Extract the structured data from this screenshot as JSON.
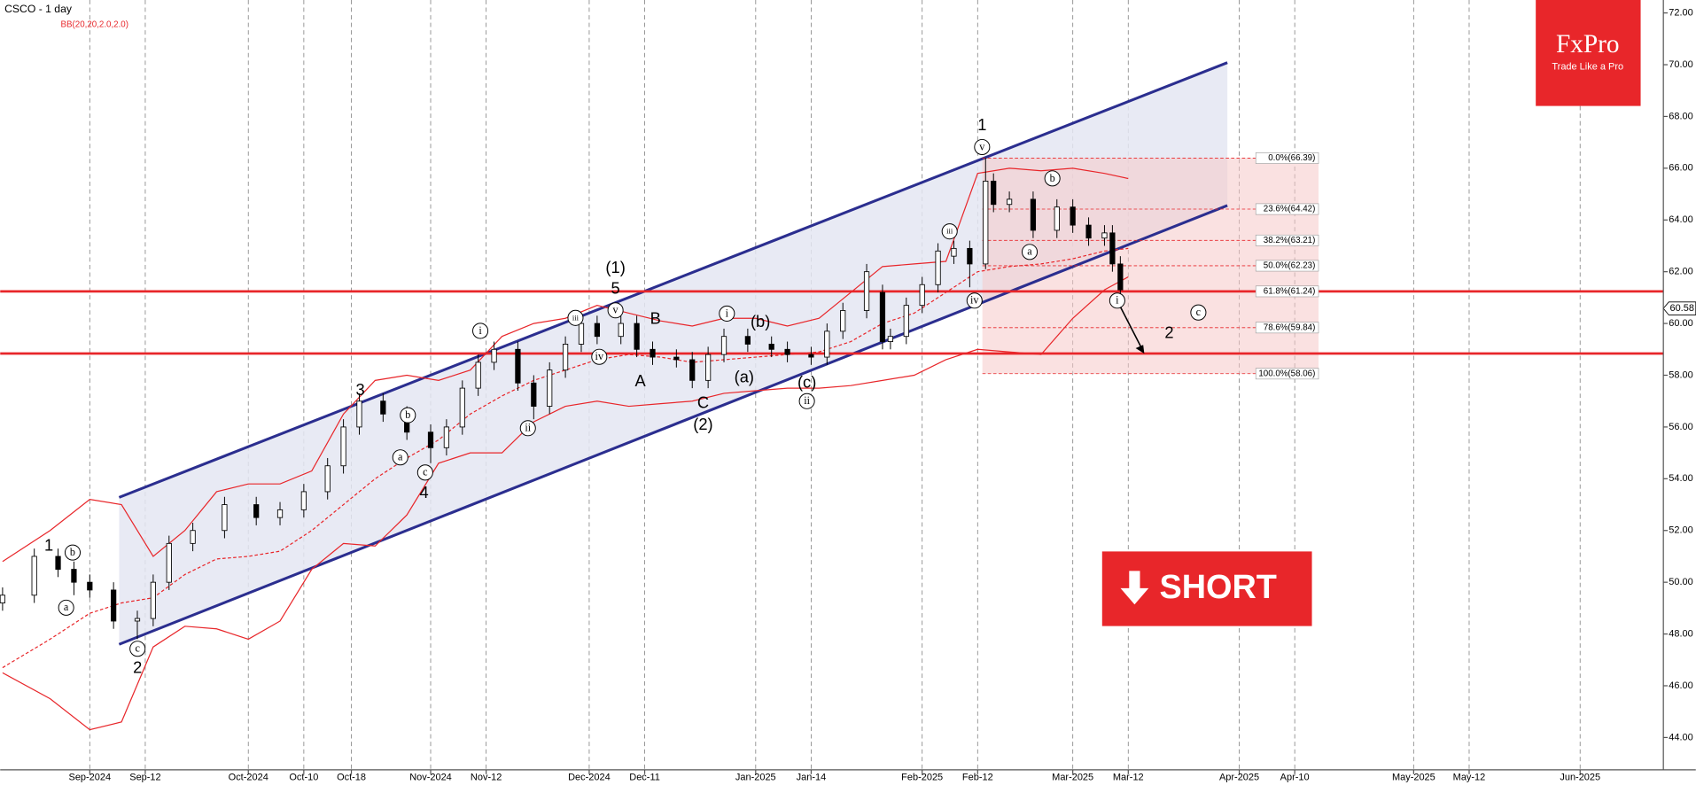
{
  "chart_data": {
    "type": "candlestick",
    "title": "CSCO - 1 day",
    "indicator_label": "BB(20,20,2.0,2.0)",
    "xlim": [
      -11.3,
      198.5
    ],
    "xticks": [
      {
        "value": 0,
        "label": "Sep-2024"
      },
      {
        "value": 7,
        "label": "Sep-12"
      },
      {
        "value": 20,
        "label": "Oct-2024"
      },
      {
        "value": 27,
        "label": "Oct-10"
      },
      {
        "value": 33,
        "label": "Oct-18"
      },
      {
        "value": 43,
        "label": "Nov-2024"
      },
      {
        "value": 50,
        "label": "Nov-12"
      },
      {
        "value": 63,
        "label": "Dec-2024"
      },
      {
        "value": 70,
        "label": "Dec-11"
      },
      {
        "value": 84,
        "label": "Jan-2025"
      },
      {
        "value": 91,
        "label": "Jan-14"
      },
      {
        "value": 105,
        "label": "Feb-2025"
      },
      {
        "value": 112,
        "label": "Feb-12"
      },
      {
        "value": 124,
        "label": "Mar-2025"
      },
      {
        "value": 131,
        "label": "Mar-12"
      },
      {
        "value": 145,
        "label": "Apr-2025"
      },
      {
        "value": 152,
        "label": "Apr-10"
      },
      {
        "value": 167,
        "label": "May-2025"
      },
      {
        "value": 174,
        "label": "May-12"
      },
      {
        "value": 188,
        "label": "Jun-2025"
      }
    ],
    "ylim": [
      42.75,
      72.5
    ],
    "yticks": [
      {
        "value": 44,
        "label": "44.00"
      },
      {
        "value": 46,
        "label": "46.00"
      },
      {
        "value": 48,
        "label": "48.00"
      },
      {
        "value": 50,
        "label": "50.00"
      },
      {
        "value": 52,
        "label": "52.00"
      },
      {
        "value": 54,
        "label": "54.00"
      },
      {
        "value": 56,
        "label": "56.00"
      },
      {
        "value": 58,
        "label": "58.00"
      },
      {
        "value": 60,
        "label": "60.00"
      },
      {
        "value": 62,
        "label": "62.00"
      },
      {
        "value": 64,
        "label": "64.00"
      },
      {
        "value": 66,
        "label": "66.00"
      },
      {
        "value": 68,
        "label": "68.00"
      },
      {
        "value": 70,
        "label": "70.00"
      },
      {
        "value": 72,
        "label": "72.00"
      }
    ],
    "last_price": 60.58,
    "candles": {
      "x": [
        -11,
        -7,
        -4,
        -2,
        0,
        3,
        6,
        8,
        10,
        13,
        17,
        21,
        24,
        27,
        30,
        32,
        34,
        37,
        40,
        43,
        45,
        47,
        49,
        51,
        54,
        56,
        58,
        60,
        62,
        64,
        67,
        69,
        71,
        74,
        76,
        78,
        80,
        83,
        86,
        88,
        91,
        93,
        95,
        98,
        100,
        101,
        103,
        105,
        107,
        109,
        111,
        113,
        114,
        116,
        119,
        122,
        124,
        126,
        128,
        129,
        130
      ],
      "open": [
        49.2,
        49.5,
        51.0,
        50.5,
        50.0,
        49.7,
        48.5,
        48.6,
        50.0,
        51.5,
        52.0,
        53.0,
        52.5,
        52.8,
        53.5,
        54.5,
        56.0,
        57.0,
        56.5,
        55.8,
        55.2,
        56.0,
        57.5,
        58.5,
        59.0,
        57.7,
        56.8,
        58.2,
        59.2,
        60.0,
        59.5,
        60.0,
        59.0,
        58.7,
        58.6,
        57.8,
        58.8,
        59.5,
        59.2,
        59.0,
        58.8,
        58.7,
        59.7,
        60.5,
        61.2,
        59.3,
        59.5,
        60.7,
        61.5,
        62.6,
        62.9,
        62.3,
        65.5,
        64.6,
        64.8,
        63.6,
        64.5,
        63.8,
        63.3,
        63.5,
        62.3
      ],
      "high": [
        49.8,
        51.3,
        51.3,
        50.8,
        50.3,
        50.0,
        48.9,
        50.3,
        51.8,
        52.3,
        53.3,
        53.3,
        53.1,
        53.8,
        54.8,
        56.3,
        57.3,
        57.3,
        56.8,
        56.1,
        56.3,
        57.8,
        58.8,
        59.3,
        59.3,
        58.0,
        58.5,
        59.5,
        60.3,
        60.3,
        60.3,
        60.3,
        59.3,
        59.0,
        58.9,
        59.1,
        59.8,
        59.8,
        59.5,
        59.3,
        59.1,
        60.0,
        60.8,
        62.3,
        61.5,
        59.8,
        61.0,
        61.8,
        63.1,
        63.2,
        63.2,
        66.4,
        65.8,
        65.1,
        65.1,
        64.8,
        64.8,
        64.1,
        63.8,
        63.8,
        62.6
      ],
      "low": [
        48.9,
        49.2,
        50.2,
        49.5,
        49.4,
        48.2,
        47.8,
        48.3,
        49.7,
        51.2,
        51.7,
        52.2,
        52.2,
        52.5,
        53.2,
        54.2,
        55.7,
        56.2,
        55.5,
        54.6,
        54.9,
        55.7,
        57.2,
        58.2,
        57.4,
        56.3,
        56.5,
        57.9,
        58.9,
        59.2,
        59.2,
        58.7,
        58.4,
        58.3,
        57.5,
        57.5,
        58.5,
        58.9,
        58.7,
        58.5,
        58.4,
        58.4,
        59.4,
        60.2,
        59.0,
        59.0,
        59.2,
        60.4,
        61.2,
        62.3,
        61.4,
        62.1,
        64.3,
        64.3,
        63.3,
        63.3,
        63.5,
        63.0,
        63.0,
        62.0,
        61.0
      ],
      "close": [
        49.5,
        51.0,
        50.5,
        50.0,
        49.7,
        48.5,
        48.6,
        50.0,
        51.5,
        52.0,
        53.0,
        52.5,
        52.8,
        53.5,
        54.5,
        56.0,
        57.0,
        56.5,
        55.8,
        55.2,
        56.0,
        57.5,
        58.5,
        59.0,
        57.7,
        56.8,
        58.2,
        59.2,
        60.0,
        59.5,
        60.0,
        59.0,
        58.7,
        58.6,
        57.8,
        58.8,
        59.5,
        59.2,
        59.0,
        58.8,
        58.7,
        59.7,
        60.5,
        62.0,
        59.3,
        59.5,
        60.7,
        61.5,
        62.8,
        62.9,
        62.3,
        65.5,
        64.6,
        64.8,
        63.6,
        64.5,
        63.8,
        63.3,
        63.5,
        62.3,
        61.3
      ]
    },
    "bands": {
      "color": "#e8262a",
      "x": [
        -11,
        -5,
        0,
        4,
        8,
        12,
        16,
        20,
        24,
        28,
        32,
        36,
        40,
        44,
        48,
        52,
        56,
        60,
        64,
        68,
        72,
        76,
        80,
        84,
        88,
        92,
        96,
        100,
        104,
        108,
        112,
        116,
        120,
        124,
        128,
        131
      ],
      "upper": [
        50.8,
        52.0,
        53.2,
        53.0,
        51.0,
        52.0,
        53.5,
        53.8,
        53.8,
        54.3,
        56.5,
        57.8,
        58.0,
        57.8,
        58.2,
        59.5,
        60.0,
        60.2,
        60.7,
        60.4,
        60.1,
        59.9,
        60.2,
        60.2,
        59.9,
        60.2,
        61.2,
        62.2,
        62.3,
        62.4,
        65.8,
        66.0,
        65.9,
        66.0,
        65.8,
        65.6
      ],
      "middle": [
        46.7,
        47.8,
        48.8,
        49.2,
        49.4,
        50.3,
        50.9,
        51.0,
        51.2,
        52.0,
        53.0,
        54.0,
        54.8,
        55.5,
        56.5,
        57.2,
        57.8,
        58.2,
        58.6,
        58.8,
        58.7,
        58.5,
        58.6,
        58.7,
        58.8,
        58.9,
        59.3,
        60.0,
        60.4,
        61.2,
        62.0,
        62.2,
        62.3,
        62.5,
        62.8,
        62.9
      ],
      "lower": [
        46.5,
        45.5,
        44.3,
        44.6,
        47.5,
        48.3,
        48.2,
        47.8,
        48.5,
        50.5,
        51.5,
        51.4,
        52.6,
        54.6,
        55.0,
        55.0,
        56.2,
        56.8,
        57.0,
        56.8,
        56.9,
        57.0,
        57.3,
        57.4,
        57.5,
        57.5,
        57.6,
        57.8,
        58.0,
        58.6,
        59.0,
        58.9,
        58.8,
        60.2,
        61.3,
        61.8
      ]
    },
    "channel": {
      "color": "#2b2e8f",
      "x": [
        3.7,
        143.5
      ],
      "upper": [
        53.28,
        70.08
      ],
      "lower": [
        47.6,
        64.56
      ]
    },
    "levels": {
      "color": "#e8262a",
      "values": [
        61.24,
        58.84
      ]
    },
    "fibonacci": {
      "x": [
        112.6,
        155
      ],
      "levels": [
        {
          "value": 66.39,
          "label": "0.0%(66.39)"
        },
        {
          "value": 64.42,
          "label": "23.6%(64.42)"
        },
        {
          "value": 63.21,
          "label": "38.2%(63.21)"
        },
        {
          "value": 62.23,
          "label": "50.0%(62.23)"
        },
        {
          "value": 61.24,
          "label": "61.8%(61.24)"
        },
        {
          "value": 59.84,
          "label": "78.6%(59.84)"
        },
        {
          "value": 58.06,
          "label": "100.0%(58.06)"
        }
      ]
    },
    "wave_labels": [
      {
        "text": "1",
        "circled": false
      },
      {
        "text": "b",
        "circled": true
      },
      {
        "text": "a",
        "circled": true
      },
      {
        "text": "c",
        "circled": true
      },
      {
        "text": "2",
        "circled": false
      },
      {
        "text": "3",
        "circled": false
      },
      {
        "text": "b",
        "circled": true
      },
      {
        "text": "a",
        "circled": true
      },
      {
        "text": "c",
        "circled": true
      },
      {
        "text": "4",
        "circled": false
      },
      {
        "text": "i",
        "circled": true
      },
      {
        "text": "ii",
        "circled": true
      },
      {
        "text": "iii",
        "circled": true
      },
      {
        "text": "iv",
        "circled": true
      },
      {
        "text": "v",
        "circled": true
      },
      {
        "text": "5",
        "circled": false
      },
      {
        "text": "(1)",
        "circled": false
      },
      {
        "text": "B",
        "circled": false
      },
      {
        "text": "A",
        "circled": false
      },
      {
        "text": "C",
        "circled": false
      },
      {
        "text": "(2)",
        "circled": false
      },
      {
        "text": "i",
        "circled": true
      },
      {
        "text": "(b)",
        "circled": false
      },
      {
        "text": "(a)",
        "circled": false
      },
      {
        "text": "(c)",
        "circled": false
      },
      {
        "text": "ii",
        "circled": true
      },
      {
        "text": "iii",
        "circled": true
      },
      {
        "text": "iv",
        "circled": true
      },
      {
        "text": "v",
        "circled": true
      },
      {
        "text": "1",
        "circled": false
      },
      {
        "text": "b",
        "circled": true
      },
      {
        "text": "a",
        "circled": true
      },
      {
        "text": "c",
        "circled": true
      },
      {
        "text": "2",
        "circled": false
      },
      {
        "text": "i",
        "circled": true
      }
    ],
    "badge": "SHORT",
    "logo": {
      "name": "FxPro",
      "tagline": "Trade Like a Pro"
    }
  }
}
